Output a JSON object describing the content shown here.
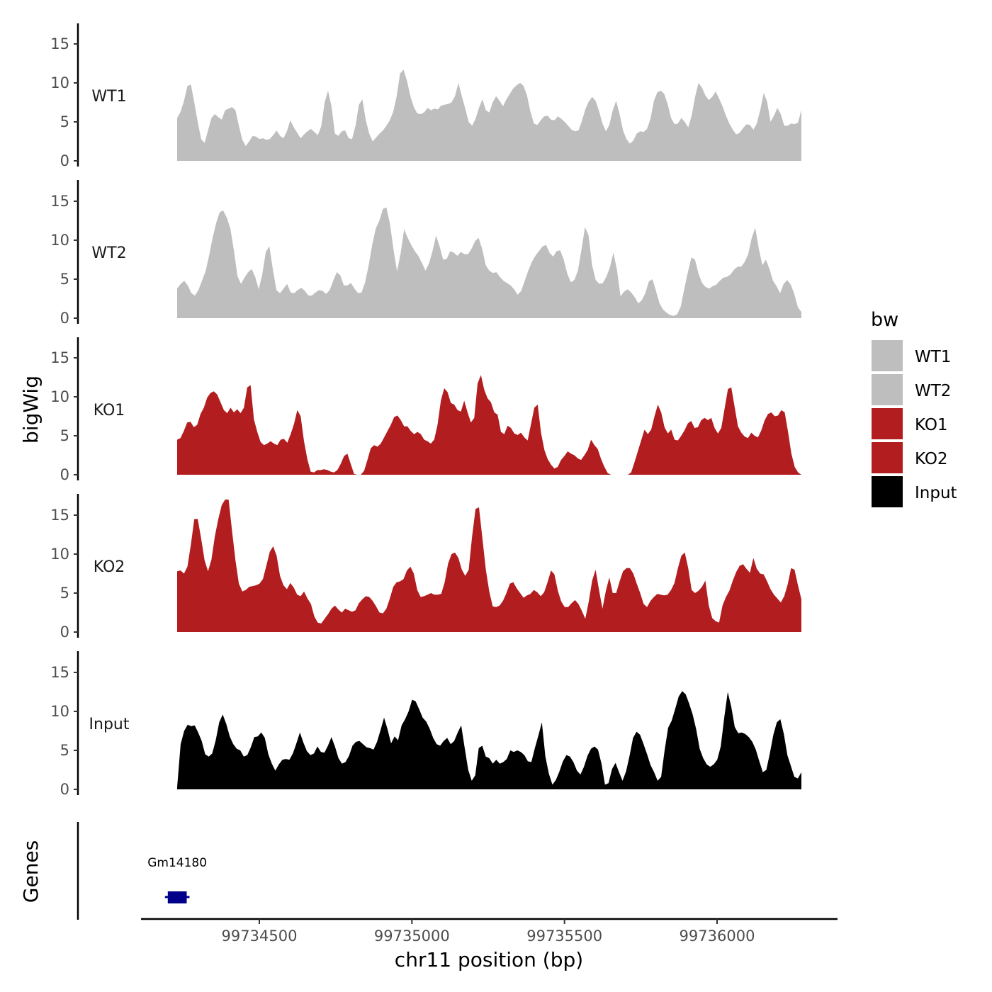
{
  "chart_data": {
    "type": "area",
    "title": "",
    "ylabel": "bigWig",
    "xlabel": "chr11 position (bp)",
    "genes_label": "Genes",
    "x_range": [
      99734165,
      99736280
    ],
    "x_ticks": [
      99734500,
      99735000,
      99735500,
      99736000
    ],
    "x_tick_labels": [
      "99734500",
      "99735000",
      "99735500",
      "99736000"
    ],
    "y_range": [
      0,
      18
    ],
    "y_ticks": [
      0,
      5,
      10,
      15
    ],
    "y_tick_labels": [
      "0",
      "5",
      "10",
      "15"
    ],
    "legend": {
      "title": "bw",
      "entries": [
        {
          "name": "WT1",
          "color": "#bebebe"
        },
        {
          "name": "WT2",
          "color": "#bebebe"
        },
        {
          "name": "KO1",
          "color": "#b21d1f"
        },
        {
          "name": "KO2",
          "color": "#b21d1f"
        },
        {
          "name": "Input",
          "color": "#000000"
        }
      ]
    },
    "series": [
      {
        "name": "WT1",
        "color": "#bebebe",
        "x_start": 99734285,
        "x_step": 10,
        "values": [
          5.5,
          6.3,
          7.7,
          9.6,
          9.8,
          7.5,
          5.0,
          2.8,
          2.3,
          3.9,
          5.5,
          6.0,
          5.6,
          5.3,
          6.5,
          6.7,
          6.9,
          6.5,
          4.5,
          2.7,
          1.9,
          2.5,
          3.2,
          3.1,
          2.8,
          2.9,
          2.7,
          2.8,
          3.3,
          3.9,
          3.2,
          2.9,
          3.8,
          5.2,
          4.3,
          3.6,
          2.9,
          3.4,
          3.8,
          4.1,
          3.7,
          3.3,
          4.4,
          7.5,
          9.0,
          7.0,
          3.5,
          3.2,
          3.8,
          3.9,
          2.9,
          2.8,
          4.5,
          7.2,
          7.9,
          5.2,
          3.5,
          2.5,
          3.0,
          3.5,
          3.9,
          4.5,
          5.2,
          6.3,
          8.3,
          11.2,
          11.7,
          10.3,
          8.3,
          6.9,
          6.1,
          6.0,
          6.2,
          6.8,
          6.5,
          6.7,
          6.6,
          7.1,
          7.2,
          7.3,
          7.5,
          8.3,
          10.0,
          8.3,
          6.7,
          5.0,
          4.5,
          5.4,
          6.8,
          7.9,
          6.5,
          6.2,
          7.5,
          8.3,
          7.7,
          7.0,
          7.9,
          8.6,
          9.3,
          9.7,
          10.0,
          9.6,
          8.4,
          6.3,
          4.8,
          4.6,
          5.2,
          5.7,
          5.8,
          5.3,
          5.2,
          5.7,
          5.4,
          5.0,
          4.5,
          4.0,
          3.8,
          3.9,
          5.1,
          6.6,
          7.6,
          8.2,
          7.7,
          6.4,
          4.8,
          3.8,
          4.6,
          6.5,
          7.7,
          6.0,
          3.9,
          2.8,
          2.2,
          2.6,
          3.5,
          3.8,
          3.7,
          4.1,
          5.4,
          7.7,
          8.8,
          9.0,
          8.6,
          7.3,
          5.5,
          4.7,
          4.8,
          5.5,
          5.0,
          4.3,
          5.8,
          8.2,
          10.0,
          9.4,
          8.4,
          7.8,
          8.2,
          8.9,
          8.0,
          7.0,
          5.8,
          4.8,
          4.0,
          3.4,
          3.6,
          4.2,
          4.7,
          4.6,
          4.0,
          4.8,
          6.5,
          8.7,
          7.6,
          5.0,
          5.8,
          6.8,
          6.0,
          4.5,
          4.5,
          4.8,
          4.7,
          4.9,
          6.5
        ]
      },
      {
        "name": "WT2",
        "color": "#bebebe",
        "x_start": 99734285,
        "x_step": 10,
        "values": [
          3.8,
          4.4,
          4.8,
          4.2,
          3.2,
          2.9,
          3.6,
          4.8,
          6.0,
          8.0,
          10.3,
          12.2,
          13.6,
          13.8,
          12.9,
          11.5,
          8.7,
          5.4,
          4.4,
          5.2,
          5.9,
          6.3,
          5.3,
          3.7,
          5.6,
          8.5,
          9.2,
          6.2,
          3.6,
          3.2,
          3.8,
          4.4,
          3.3,
          3.2,
          3.6,
          3.9,
          3.5,
          2.9,
          2.9,
          3.3,
          3.6,
          3.5,
          3.1,
          3.6,
          4.8,
          5.9,
          5.5,
          4.2,
          4.2,
          4.5,
          3.8,
          3.2,
          3.3,
          4.6,
          6.8,
          9.4,
          11.5,
          12.5,
          14.0,
          14.2,
          12.1,
          8.8,
          6.0,
          8.3,
          11.4,
          10.3,
          9.4,
          8.6,
          8.0,
          7.1,
          6.1,
          7.0,
          8.6,
          10.6,
          9.2,
          7.5,
          7.6,
          8.6,
          8.4,
          8.0,
          8.5,
          8.2,
          8.2,
          8.9,
          9.9,
          10.3,
          8.9,
          6.8,
          6.1,
          5.8,
          5.9,
          5.3,
          4.8,
          4.5,
          4.2,
          3.7,
          3.0,
          3.5,
          4.8,
          6.1,
          7.2,
          8.0,
          8.6,
          9.2,
          9.4,
          8.4,
          7.9,
          8.6,
          8.7,
          7.5,
          5.7,
          4.6,
          4.9,
          6.1,
          8.8,
          11.7,
          10.6,
          6.8,
          4.9,
          4.4,
          4.5,
          5.3,
          6.5,
          8.4,
          6.2,
          2.8,
          3.4,
          3.7,
          3.3,
          2.7,
          1.9,
          2.3,
          3.2,
          4.7,
          5.0,
          3.5,
          1.9,
          1.1,
          0.7,
          0.4,
          0.3,
          0.5,
          1.5,
          3.8,
          5.9,
          7.8,
          7.5,
          5.7,
          4.5,
          4.0,
          3.8,
          4.1,
          4.3,
          4.8,
          5.2,
          5.3,
          5.6,
          6.2,
          6.6,
          6.6,
          7.2,
          8.2,
          10.3,
          11.6,
          8.9,
          6.8,
          7.5,
          6.3,
          4.8,
          4.1,
          3.2,
          4.4,
          4.9,
          4.3,
          3.1,
          1.4,
          0.8
        ]
      },
      {
        "name": "KO1",
        "color": "#b21d1f",
        "x_start": 99734285,
        "x_step": 10,
        "values": [
          4.5,
          4.7,
          5.6,
          6.7,
          6.8,
          6.1,
          6.4,
          7.8,
          8.6,
          9.9,
          10.5,
          10.7,
          10.3,
          9.3,
          8.3,
          7.9,
          8.6,
          8.0,
          8.4,
          7.9,
          8.6,
          11.2,
          11.5,
          7.1,
          5.5,
          4.2,
          3.8,
          4.0,
          4.3,
          4.0,
          3.8,
          4.5,
          4.6,
          4.1,
          5.2,
          6.5,
          8.3,
          7.5,
          4.3,
          2.0,
          0.4,
          0.3,
          0.6,
          0.6,
          0.7,
          0.6,
          0.4,
          0.3,
          0.6,
          1.4,
          2.4,
          2.7,
          1.4,
          0.1,
          0.0,
          0.0,
          0.5,
          1.9,
          3.4,
          3.8,
          3.6,
          4.0,
          4.8,
          5.6,
          6.4,
          7.4,
          7.6,
          7.0,
          6.2,
          6.2,
          5.6,
          5.2,
          5.5,
          5.2,
          4.5,
          4.3,
          4.0,
          4.5,
          6.4,
          9.5,
          11.1,
          10.6,
          9.2,
          9.0,
          8.3,
          8.1,
          9.5,
          8.0,
          6.7,
          7.3,
          11.7,
          12.8,
          10.9,
          9.8,
          9.3,
          8.0,
          7.7,
          5.5,
          5.2,
          6.3,
          6.0,
          5.3,
          5.1,
          5.4,
          4.8,
          4.4,
          6.5,
          8.6,
          9.0,
          5.4,
          3.2,
          2.0,
          1.3,
          0.8,
          1.0,
          1.9,
          2.4,
          3.0,
          2.7,
          2.5,
          2.1,
          1.9,
          2.5,
          3.2,
          4.5,
          3.8,
          3.3,
          2.0,
          1.0,
          0.2,
          0.0,
          0.0,
          0.0,
          0.0,
          0.0,
          0.0,
          0.3,
          1.6,
          3.0,
          4.4,
          5.8,
          5.2,
          5.8,
          7.5,
          9.0,
          8.0,
          6.1,
          5.3,
          5.8,
          4.5,
          4.4,
          5.0,
          5.7,
          6.6,
          6.9,
          6.0,
          6.1,
          7.0,
          7.3,
          7.0,
          7.3,
          6.0,
          5.3,
          6.0,
          8.5,
          11.0,
          11.2,
          8.7,
          6.2,
          5.4,
          4.9,
          4.7,
          5.4,
          5.0,
          4.8,
          5.7,
          7.0,
          7.8,
          8.0,
          7.5,
          7.6,
          8.3,
          8.0,
          5.5,
          2.7,
          1.0,
          0.3,
          0.0
        ]
      },
      {
        "name": "KO2",
        "color": "#b21d1f",
        "x_start": 99734285,
        "x_step": 10,
        "values": [
          7.8,
          7.9,
          7.5,
          8.4,
          11.2,
          14.5,
          14.5,
          12.0,
          9.2,
          7.8,
          9.3,
          12.3,
          14.5,
          16.3,
          17.0,
          17.0,
          13.0,
          9.2,
          6.2,
          5.2,
          5.4,
          5.8,
          5.9,
          6.0,
          6.2,
          6.8,
          8.5,
          10.3,
          11.0,
          9.8,
          7.2,
          6.0,
          5.5,
          6.3,
          5.7,
          4.8,
          4.6,
          5.2,
          4.3,
          3.6,
          2.0,
          1.2,
          1.1,
          1.7,
          2.3,
          3.0,
          3.4,
          2.9,
          2.5,
          3.0,
          2.8,
          2.6,
          2.8,
          3.7,
          4.2,
          4.6,
          4.5,
          4.0,
          3.3,
          2.5,
          2.4,
          3.0,
          4.3,
          5.8,
          6.4,
          6.5,
          6.8,
          7.9,
          8.4,
          7.5,
          5.4,
          4.5,
          4.6,
          4.8,
          5.0,
          4.8,
          4.8,
          4.9,
          6.4,
          8.8,
          10.0,
          10.2,
          9.5,
          8.0,
          7.2,
          8.0,
          12.3,
          15.8,
          16.0,
          12.0,
          8.0,
          5.2,
          3.3,
          3.2,
          3.4,
          4.0,
          5.0,
          6.2,
          6.4,
          5.6,
          5.0,
          4.4,
          4.7,
          4.9,
          5.4,
          5.1,
          4.6,
          5.1,
          6.4,
          7.9,
          7.4,
          5.3,
          3.9,
          3.2,
          3.2,
          3.7,
          4.1,
          3.6,
          2.7,
          1.7,
          3.9,
          6.6,
          8.0,
          5.4,
          3.0,
          5.3,
          7.0,
          5.0,
          5.0,
          6.5,
          7.8,
          8.2,
          8.2,
          7.5,
          6.2,
          5.0,
          3.6,
          3.2,
          4.0,
          4.5,
          4.9,
          4.8,
          4.7,
          4.8,
          5.4,
          6.3,
          8.2,
          9.8,
          10.2,
          8.2,
          5.4,
          5.0,
          5.3,
          5.8,
          6.6,
          3.4,
          1.8,
          1.4,
          1.2,
          3.4,
          4.5,
          5.3,
          6.6,
          7.7,
          8.5,
          8.7,
          8.1,
          7.6,
          9.5,
          8.1,
          7.5,
          7.4,
          6.5,
          5.5,
          4.8,
          4.3,
          3.8,
          4.6,
          6.1,
          8.2,
          8.0,
          6.0,
          4.2
        ]
      },
      {
        "name": "Input",
        "color": "#000000",
        "x_start": 99734285,
        "x_step": 10,
        "values": [
          0.3,
          5.8,
          7.5,
          8.3,
          8.1,
          8.2,
          7.3,
          6.2,
          4.5,
          4.2,
          4.6,
          6.3,
          8.6,
          9.6,
          8.4,
          6.8,
          5.8,
          5.2,
          5.0,
          4.2,
          4.4,
          5.4,
          6.7,
          6.8,
          7.3,
          6.6,
          4.5,
          3.3,
          2.4,
          3.2,
          3.8,
          3.9,
          3.8,
          4.6,
          5.9,
          7.3,
          6.0,
          4.9,
          4.4,
          4.6,
          5.5,
          4.8,
          4.7,
          5.6,
          6.7,
          5.5,
          4.0,
          3.3,
          3.5,
          4.3,
          5.6,
          6.1,
          6.2,
          5.8,
          5.4,
          5.3,
          5.1,
          6.1,
          7.6,
          9.2,
          7.7,
          5.9,
          6.8,
          6.3,
          8.2,
          9.0,
          10.0,
          11.5,
          11.3,
          10.3,
          9.2,
          8.7,
          7.8,
          6.6,
          5.8,
          5.6,
          6.2,
          6.6,
          5.8,
          6.2,
          7.3,
          8.2,
          5.3,
          2.5,
          1.1,
          1.8,
          5.3,
          5.6,
          4.2,
          4.0,
          3.3,
          3.8,
          3.3,
          3.5,
          3.9,
          5.0,
          4.8,
          5.0,
          4.8,
          4.4,
          3.6,
          3.5,
          5.3,
          6.9,
          8.6,
          4.2,
          2.0,
          0.6,
          1.2,
          2.3,
          3.6,
          4.4,
          4.2,
          3.5,
          2.4,
          1.9,
          2.9,
          4.3,
          5.2,
          5.5,
          5.1,
          3.3,
          0.6,
          0.8,
          2.6,
          3.4,
          2.2,
          1.1,
          2.3,
          4.3,
          6.6,
          7.4,
          7.0,
          5.8,
          4.5,
          3.1,
          2.2,
          1.1,
          1.6,
          5.0,
          7.9,
          8.8,
          10.3,
          11.9,
          12.6,
          12.2,
          11.0,
          9.6,
          7.7,
          5.2,
          4.0,
          3.2,
          2.9,
          3.2,
          3.8,
          5.5,
          9.2,
          12.5,
          10.6,
          8.0,
          7.2,
          7.3,
          7.1,
          6.7,
          6.1,
          5.1,
          3.6,
          2.2,
          2.5,
          4.6,
          7.0,
          8.6,
          9.0,
          7.1,
          4.4,
          3.0,
          1.6,
          1.4,
          2.2
        ]
      }
    ],
    "genes": [
      {
        "name": "Gm14180",
        "start": 99734200,
        "end": 99734262,
        "color": "#00008b"
      }
    ]
  }
}
